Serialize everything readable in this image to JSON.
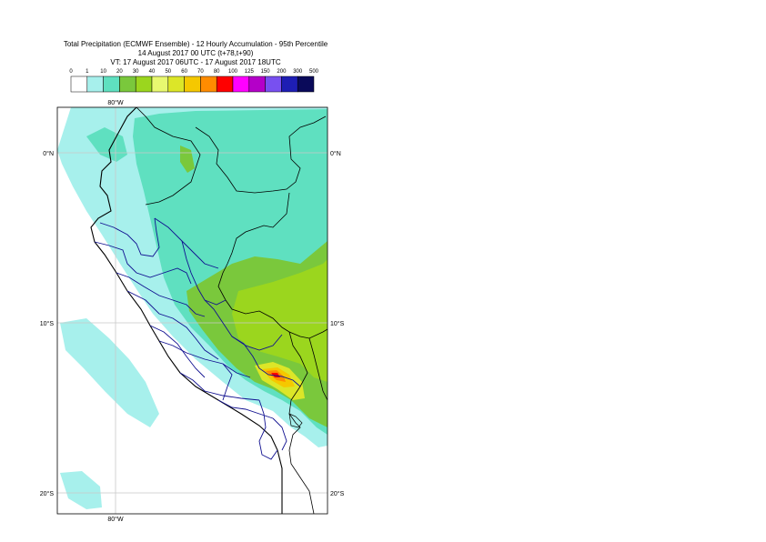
{
  "title": {
    "line1": "Total Precipitation (ECMWF Ensemble) - 12 Hourly Accumulation - 95th Percentile",
    "line2": "14 August 2017 00 UTC (t+78,t+90)",
    "line3": "VT: 17 August 2017 06UTC - 17 August 2017 18UTC"
  },
  "legend": {
    "thresholds": [
      "0",
      "1",
      "10",
      "20",
      "30",
      "40",
      "50",
      "60",
      "70",
      "80",
      "100",
      "125",
      "150",
      "200",
      "300",
      "500"
    ],
    "colors": [
      "#ffffff",
      "#a7f0ec",
      "#5fe0c0",
      "#7ac83c",
      "#9bd61e",
      "#e8f870",
      "#dce628",
      "#f5c800",
      "#ff8c00",
      "#ff0000",
      "#ff00ff",
      "#b400c8",
      "#7850f0",
      "#1e1eb4",
      "#0a0a5a"
    ]
  },
  "axes": {
    "top_lon": "80°W",
    "bottom_lon": "80°W",
    "lat_labels": [
      "0°N",
      "10°S",
      "20°S"
    ]
  }
}
